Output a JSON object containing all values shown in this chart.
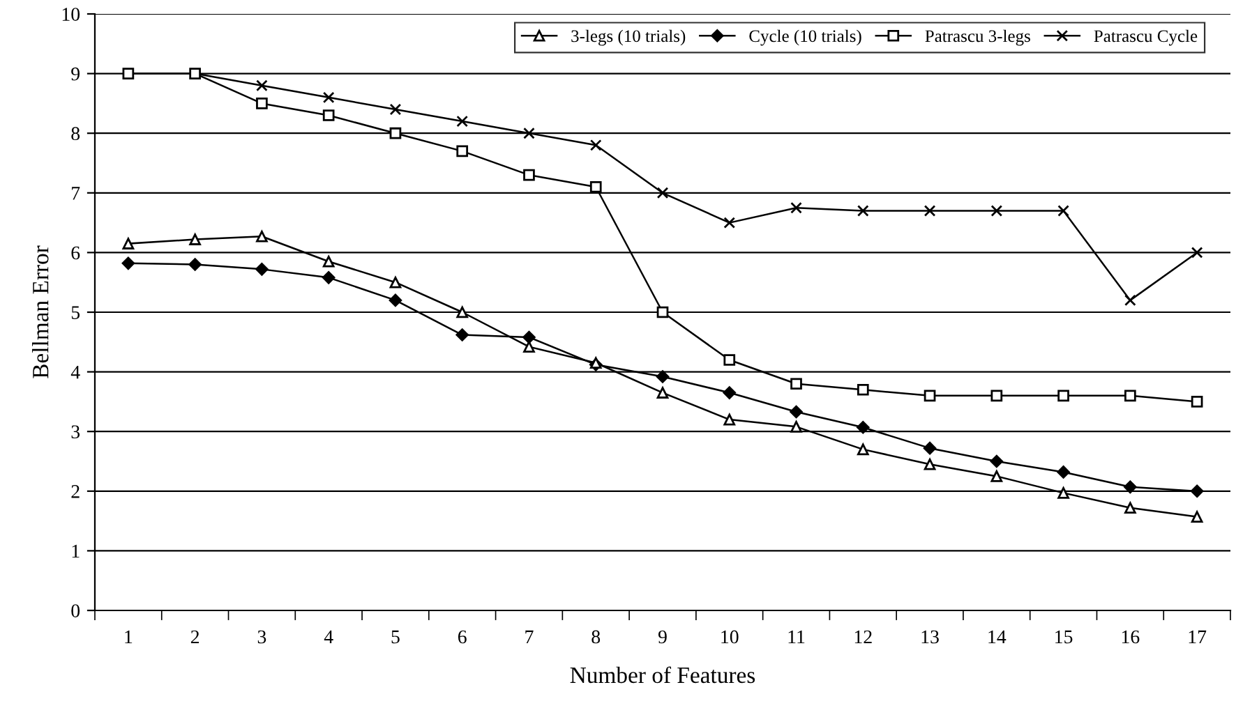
{
  "chart_data": {
    "type": "line",
    "xlabel": "Number of Features",
    "ylabel": "Bellman Error",
    "categories": [
      "1",
      "2",
      "3",
      "4",
      "5",
      "6",
      "7",
      "8",
      "9",
      "10",
      "11",
      "12",
      "13",
      "14",
      "15",
      "16",
      "17"
    ],
    "ylim": [
      0,
      10
    ],
    "yticks": [
      0,
      1,
      2,
      3,
      4,
      5,
      6,
      7,
      8,
      9,
      10
    ],
    "grid": "y",
    "legend": "top right",
    "series": [
      {
        "name": "3-legs (10 trials)",
        "color": "#000000",
        "marker": "triangle",
        "values": [
          6.15,
          6.22,
          6.27,
          5.85,
          5.5,
          5.0,
          4.42,
          4.15,
          3.65,
          3.2,
          3.08,
          2.7,
          2.45,
          2.25,
          1.97,
          1.72,
          1.57
        ]
      },
      {
        "name": "Cycle (10 trials)",
        "color": "#000000",
        "marker": "diamond",
        "values": [
          5.82,
          5.8,
          5.72,
          5.58,
          5.2,
          4.62,
          4.58,
          4.12,
          3.92,
          3.65,
          3.33,
          3.07,
          2.72,
          2.5,
          2.32,
          2.07,
          2.0
        ]
      },
      {
        "name": "Patrascu 3-legs",
        "color": "#000000",
        "marker": "square",
        "values": [
          9.0,
          9.0,
          8.5,
          8.3,
          8.0,
          7.7,
          7.3,
          7.1,
          5.0,
          4.2,
          3.8,
          3.7,
          3.6,
          3.6,
          3.6,
          3.6,
          3.5
        ]
      },
      {
        "name": "Patrascu Cycle",
        "color": "#000000",
        "marker": "cross",
        "values": [
          null,
          9.0,
          8.8,
          8.6,
          8.4,
          8.2,
          8.0,
          7.8,
          7.0,
          6.5,
          6.75,
          6.7,
          6.7,
          6.7,
          6.7,
          5.2,
          6.0
        ]
      }
    ]
  }
}
